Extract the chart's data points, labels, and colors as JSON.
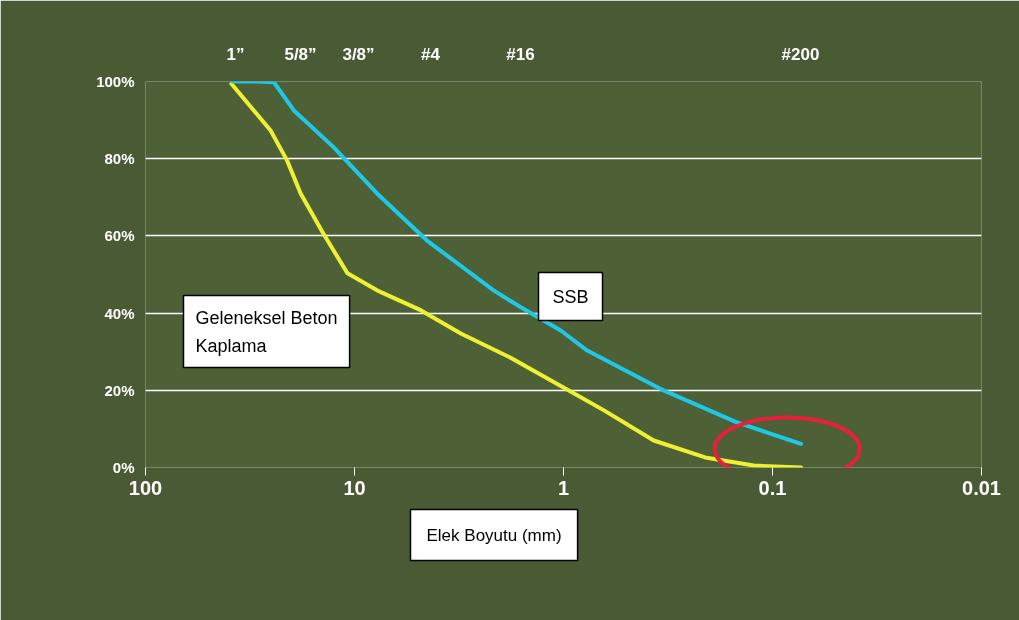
{
  "chart_data": {
    "type": "line",
    "xlabel": "Elek Boyutu (mm)",
    "log": "x",
    "grid": "y",
    "legend": false,
    "line_style": "solid",
    "marker": "none",
    "xlim": [
      100,
      0.01
    ],
    "xticks": [
      100,
      10,
      1,
      0.1,
      0.01
    ],
    "annotations": [
      "1”",
      "5/8”",
      "3/8”",
      "#4",
      "#16",
      "#200"
    ],
    "ylim": [
      0,
      100
    ],
    "yticks": [
      {
        "value": 0,
        "label": "0%"
      },
      {
        "value": 20,
        "label": "20%"
      },
      {
        "value": 40,
        "label": "40%"
      },
      {
        "value": 60,
        "label": "60%"
      },
      {
        "value": 80,
        "label": "80%"
      },
      {
        "value": 100,
        "label": "100%"
      }
    ],
    "series": [
      {
        "name": "Geleneksel Beton Kaplama",
        "color": "#f0f032",
        "x": [
          38.8,
          25.2,
          21.0,
          18.1,
          14.1,
          10.8,
          7.8,
          4.8,
          3.1,
          1.8,
          1.0,
          0.64,
          0.37,
          0.21,
          0.123,
          0.073
        ],
        "values": [
          99.4,
          87.3,
          79.5,
          71.0,
          60.6,
          50.3,
          45.9,
          40.7,
          34.7,
          28.5,
          20.7,
          14.8,
          7.0,
          2.6,
          0.5,
          0
        ]
      },
      {
        "name": "SSB",
        "color": "#1ec8e6",
        "x": [
          38.5,
          29.2,
          24.3,
          19.5,
          12.6,
          7.8,
          4.5,
          2.16,
          1.6,
          1.03,
          0.77,
          0.33,
          0.148,
          0.073
        ],
        "values": [
          100,
          100,
          99.8,
          92.5,
          83.0,
          71.0,
          58.8,
          45.9,
          41.5,
          35.5,
          30.3,
          19.9,
          11.7,
          6.1
        ]
      }
    ]
  }
}
